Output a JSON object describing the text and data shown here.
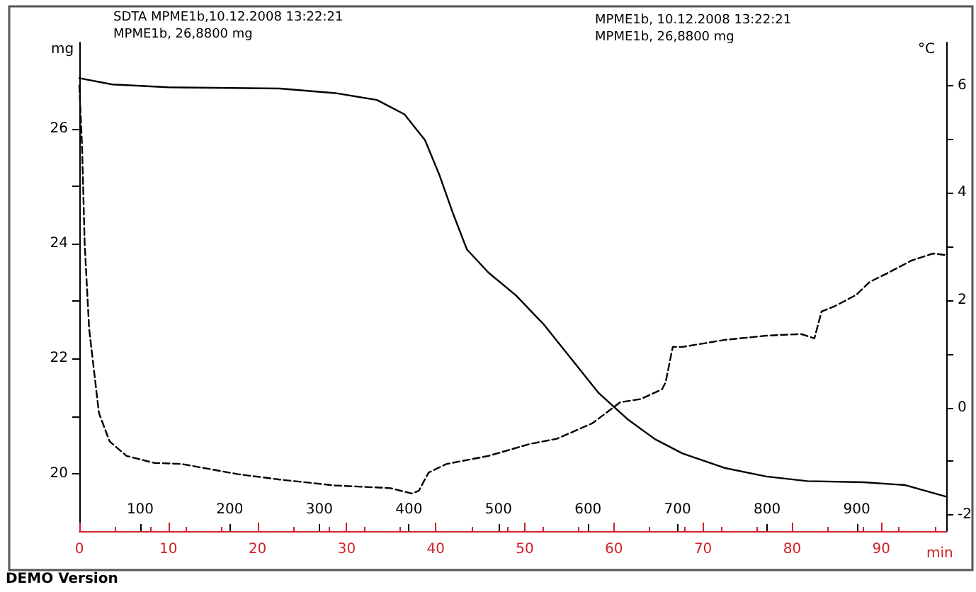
{
  "chart_data": {
    "type": "line",
    "xlabel": "min",
    "ylabel": "mg",
    "y2label": "°C",
    "xlim": [
      0,
      97.3
    ],
    "xticks": [
      0,
      10,
      20,
      30,
      40,
      50,
      60,
      70,
      80,
      90
    ],
    "x2lim": [
      32,
      1000
    ],
    "x2ticks": [
      100,
      200,
      300,
      400,
      500,
      600,
      700,
      800,
      900
    ],
    "ylim": [
      19,
      27.5
    ],
    "yticks": [
      20,
      {
        "value": 21,
        "label": null
      },
      22,
      {
        "value": 23,
        "label": null
      },
      24,
      {
        "value": 25,
        "label": null
      },
      26
    ],
    "y2lim": [
      -2.3,
      6.8
    ],
    "y2ticks": [
      -2,
      {
        "value": -1,
        "label": null
      },
      0,
      {
        "value": 1,
        "label": null
      },
      2,
      {
        "value": 3,
        "label": null
      },
      4,
      {
        "value": 5,
        "label": null
      },
      6
    ],
    "grid": false,
    "marker": "none",
    "series": [
      {
        "color": "#000000",
        "line_style": "solid",
        "x": [
          0,
          3.7,
          10.0,
          22.5,
          28.7,
          33.4,
          36.5,
          38.8,
          40.4,
          42.0,
          43.5,
          45.9,
          49.0,
          52.1,
          55.2,
          58.3,
          61.5,
          64.6,
          67.7,
          72.4,
          77.1,
          81.7,
          88.0,
          92.7,
          97.3
        ],
        "values": [
          26.88,
          26.77,
          26.72,
          26.7,
          26.62,
          26.5,
          26.25,
          25.8,
          25.2,
          24.5,
          23.9,
          23.5,
          23.1,
          22.6,
          22.0,
          21.4,
          20.95,
          20.6,
          20.35,
          20.1,
          19.95,
          19.87,
          19.85,
          19.8,
          19.6
        ]
      },
      {
        "color": "#000000",
        "line_style": "dashed",
        "axis": "y2",
        "x": [
          0,
          0.3,
          0.6,
          1.1,
          2.2,
          3.4,
          5.3,
          8.4,
          11.5,
          17.8,
          22.5,
          28.7,
          34.9,
          37.3,
          38.1,
          39.2,
          41.2,
          45.9,
          50.5,
          53.6,
          57.6,
          60.7,
          63.0,
          65.4,
          65.8,
          66.6,
          67.7,
          72.4,
          77.1,
          81.0,
          82.5,
          83.3,
          84.8,
          87.2,
          88.7,
          91.0,
          93.4,
          95.8,
          97.3
        ],
        "values": [
          6.0,
          4.9,
          3.05,
          1.47,
          -0.1,
          -0.63,
          -0.9,
          -1.03,
          -1.05,
          -1.24,
          -1.34,
          -1.45,
          -1.5,
          -1.6,
          -1.55,
          -1.21,
          -1.05,
          -0.9,
          -0.68,
          -0.58,
          -0.29,
          0.1,
          0.16,
          0.34,
          0.47,
          1.13,
          1.13,
          1.26,
          1.34,
          1.37,
          1.29,
          1.79,
          1.89,
          2.1,
          2.34,
          2.53,
          2.74,
          2.87,
          2.84
        ]
      }
    ],
    "annotations": [
      "SDTA MPME1b,10.12.2008 13:22:21",
      "MPME1b, 26,8800 mg",
      "MPME1b, 10.12.2008 13:22:21",
      "MPME1b, 26,8800 mg",
      "DEMO Version"
    ]
  }
}
